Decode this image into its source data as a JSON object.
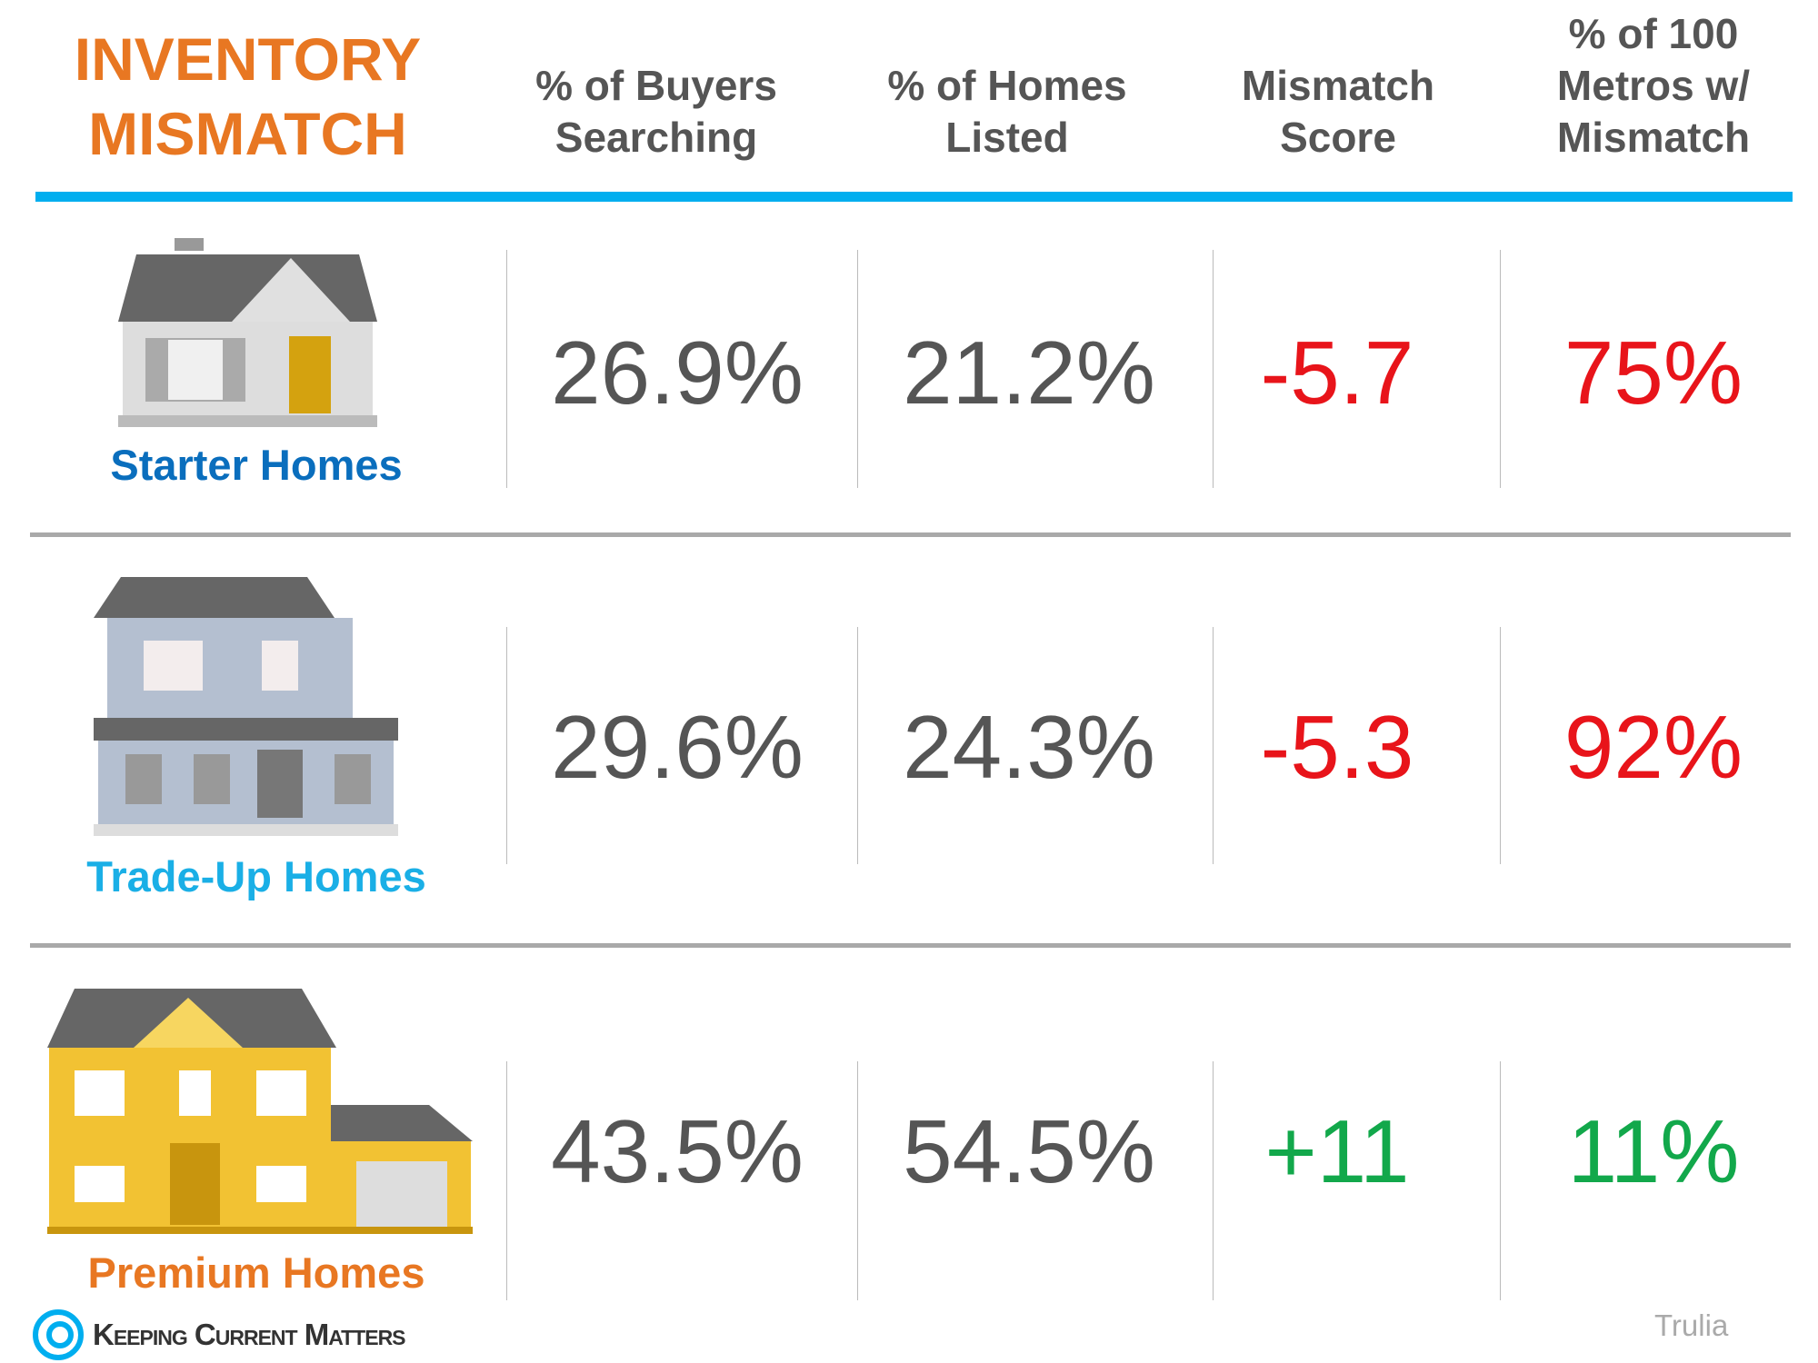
{
  "title": {
    "line1": "INVENTORY",
    "line2": "MISMATCH"
  },
  "columns": [
    {
      "line1": "% of Buyers",
      "line2": "Searching"
    },
    {
      "line1": "% of Homes",
      "line2": "Listed"
    },
    {
      "line1": "Mismatch",
      "line2": "Score"
    },
    {
      "line1": "% of 100",
      "line2": "Metros w/",
      "line3": "Mismatch"
    }
  ],
  "rows": [
    {
      "label": "Starter Homes",
      "label_color": "#0A6EBD",
      "icon": "starter-house-icon",
      "buyers": "26.9%",
      "listed": "21.2%",
      "score": "-5.7",
      "metros": "75%",
      "status_color": "#E8141A"
    },
    {
      "label": "Trade-Up Homes",
      "label_color": "#1AAFE6",
      "icon": "trade-up-house-icon",
      "buyers": "29.6%",
      "listed": "24.3%",
      "score": "-5.3",
      "metros": "92%",
      "status_color": "#E8141A"
    },
    {
      "label": "Premium Homes",
      "label_color": "#E87722",
      "icon": "premium-house-icon",
      "buyers": "43.5%",
      "listed": "54.5%",
      "score": "+11",
      "metros": "11%",
      "status_color": "#12A84B"
    }
  ],
  "colors": {
    "title": "#E87722",
    "header_bar": "#00AEEF",
    "text": "#555555"
  },
  "footer": {
    "brand": "Keeping Current Matters",
    "source": "Trulia"
  }
}
